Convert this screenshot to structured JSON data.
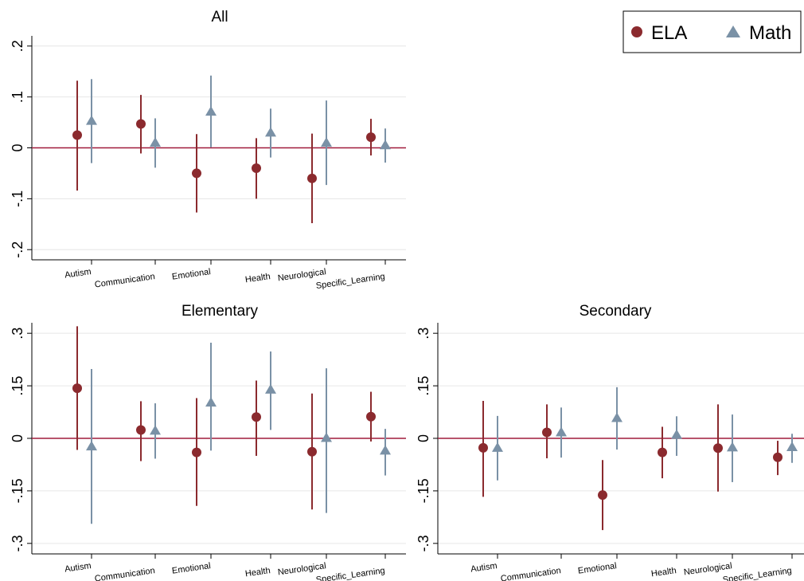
{
  "legend": {
    "placement": "top-right",
    "entries": [
      {
        "label": "ELA",
        "marker": "circle",
        "color": "#8b2a2e"
      },
      {
        "label": "Math",
        "marker": "triangle",
        "color": "#7a91a6"
      }
    ]
  },
  "colors": {
    "ela": "#8b2a2e",
    "math": "#7a91a6",
    "zero_line": "#a01c3c",
    "grid": "#e6e6e6"
  },
  "chart_data": [
    {
      "type": "scatter",
      "title": "All",
      "categories": [
        "Autism",
        "Communication",
        "Emotional",
        "Health",
        "Neurological",
        "Specific_Learning"
      ],
      "ylim": [
        -0.22,
        0.22
      ],
      "yticks": [
        -0.2,
        -0.1,
        0,
        0.1,
        0.2
      ],
      "yticklabels": [
        "-.2",
        "-.1",
        "0",
        ".1",
        ".2"
      ],
      "grid": true,
      "zero_line": true,
      "series": [
        {
          "name": "ELA",
          "values": [
            0.025,
            0.047,
            -0.05,
            -0.04,
            -0.06,
            0.021
          ],
          "lower": [
            -0.084,
            -0.011,
            -0.127,
            -0.1,
            -0.148,
            -0.015
          ],
          "upper": [
            0.132,
            0.104,
            0.027,
            0.019,
            0.028,
            0.057
          ]
        },
        {
          "name": "Math",
          "values": [
            0.053,
            0.01,
            0.071,
            0.03,
            0.01,
            0.005
          ],
          "lower": [
            -0.03,
            -0.039,
            0.001,
            -0.019,
            -0.073,
            -0.029
          ],
          "upper": [
            0.135,
            0.058,
            0.142,
            0.077,
            0.093,
            0.038
          ]
        }
      ]
    },
    {
      "type": "scatter",
      "title": "Elementary",
      "categories": [
        "Autism",
        "Communication",
        "Emotional",
        "Health",
        "Neurological",
        "Specific_Learning"
      ],
      "ylim": [
        -0.33,
        0.33
      ],
      "yticks": [
        -0.3,
        -0.15,
        0,
        0.15,
        0.3
      ],
      "yticklabels": [
        "-.3",
        "-.15",
        "0",
        ".15",
        ".3"
      ],
      "grid": true,
      "zero_line": true,
      "series": [
        {
          "name": "ELA",
          "values": [
            0.143,
            0.024,
            -0.04,
            0.061,
            -0.038,
            0.062
          ],
          "lower": [
            -0.033,
            -0.065,
            -0.193,
            -0.05,
            -0.203,
            -0.009
          ],
          "upper": [
            0.32,
            0.106,
            0.115,
            0.165,
            0.128,
            0.133
          ]
        },
        {
          "name": "Math",
          "values": [
            -0.023,
            0.022,
            0.102,
            0.139,
            0.001,
            -0.035
          ],
          "lower": [
            -0.244,
            -0.058,
            -0.035,
            0.024,
            -0.213,
            -0.106
          ],
          "upper": [
            0.198,
            0.1,
            0.273,
            0.248,
            0.2,
            0.027
          ]
        }
      ]
    },
    {
      "type": "scatter",
      "title": "Secondary",
      "categories": [
        "Autism",
        "Communication",
        "Emotional",
        "Health",
        "Neurological",
        "Specific_Learning"
      ],
      "ylim": [
        -0.33,
        0.33
      ],
      "yticks": [
        -0.3,
        -0.15,
        0,
        0.15,
        0.3
      ],
      "yticklabels": [
        "-.3",
        "-.15",
        "0",
        ".15",
        ".3"
      ],
      "grid": true,
      "zero_line": true,
      "series": [
        {
          "name": "ELA",
          "values": [
            -0.027,
            0.017,
            -0.162,
            -0.04,
            -0.028,
            -0.054
          ],
          "lower": [
            -0.167,
            -0.057,
            -0.262,
            -0.114,
            -0.152,
            -0.105
          ],
          "upper": [
            0.107,
            0.097,
            -0.062,
            0.033,
            0.097,
            -0.007
          ]
        },
        {
          "name": "Math",
          "values": [
            -0.027,
            0.017,
            0.058,
            0.01,
            -0.026,
            -0.025
          ],
          "lower": [
            -0.12,
            -0.055,
            -0.032,
            -0.05,
            -0.125,
            -0.07
          ],
          "upper": [
            0.064,
            0.088,
            0.146,
            0.063,
            0.068,
            0.013
          ]
        }
      ]
    }
  ]
}
